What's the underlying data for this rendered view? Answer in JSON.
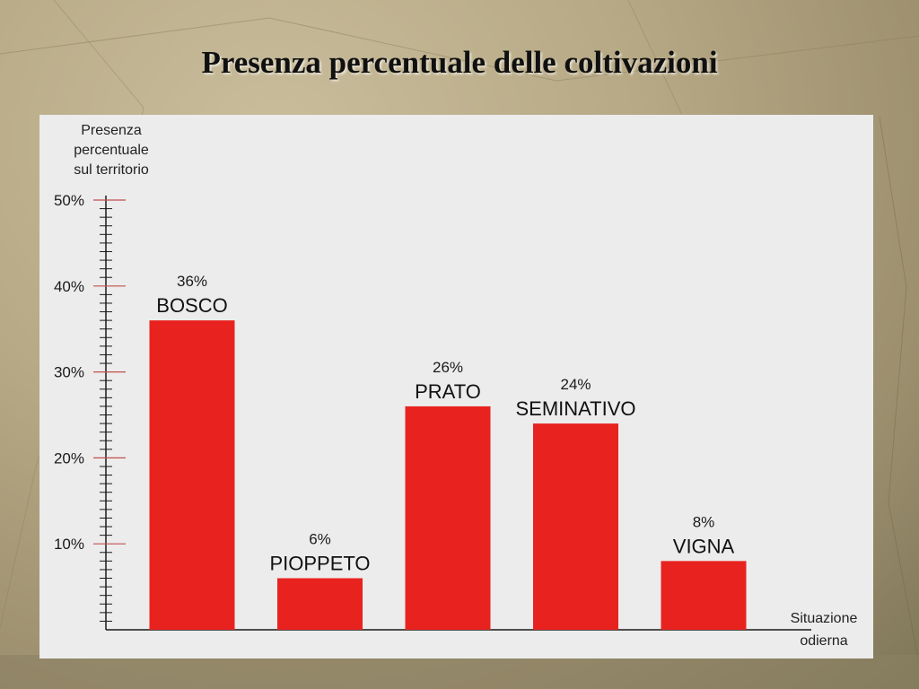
{
  "page": {
    "title": "Presenza percentuale delle coltivazioni"
  },
  "chart_data": {
    "type": "bar",
    "title": "Presenza percentuale delle coltivazioni",
    "ylabel_lines": [
      "Presenza",
      "percentuale",
      "sul territorio"
    ],
    "xlabel_lines": [
      "Situazione",
      "odierna"
    ],
    "categories": [
      "BOSCO",
      "PIOPPETO",
      "PRATO",
      "SEMINATIVO",
      "VIGNA"
    ],
    "values": [
      36,
      6,
      26,
      24,
      8
    ],
    "value_labels": [
      "36%",
      "6%",
      "26%",
      "24%",
      "8%"
    ],
    "y_ticks": [
      10,
      20,
      30,
      40,
      50
    ],
    "y_tick_labels": [
      "10%",
      "20%",
      "30%",
      "40%",
      "50%"
    ],
    "ylim": [
      0,
      50
    ],
    "grid": false,
    "legend": "none",
    "bar_color": "#e8231f",
    "axis_color": "#1a1a1a",
    "major_tick_color": "#c0504d"
  }
}
